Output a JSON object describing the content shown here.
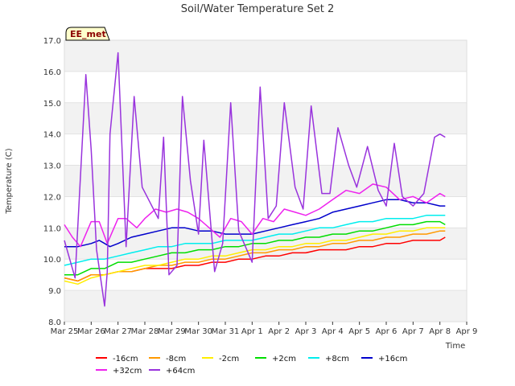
{
  "chart_data": {
    "type": "line",
    "title": "Soil/Water Temperature Set 2",
    "xlabel": "Time",
    "ylabel": "Temperature (C)",
    "annotation": "EE_met",
    "x_ticks": [
      "Mar 25",
      "Mar 26",
      "Mar 27",
      "Mar 28",
      "Mar 29",
      "Mar 30",
      "Mar 31",
      "Apr 1",
      "Apr 2",
      "Apr 3",
      "Apr 4",
      "Apr 5",
      "Apr 6",
      "Apr 7",
      "Apr 8",
      "Apr 9"
    ],
    "xlim": [
      0,
      15
    ],
    "y_ticks": [
      "8.0",
      "9.0",
      "10.0",
      "11.0",
      "12.0",
      "13.0",
      "14.0",
      "15.0",
      "16.0",
      "17.0"
    ],
    "ylim": [
      8.0,
      17.0
    ],
    "grid": "horizontal bands",
    "legend_position": "bottom",
    "x_units": "days since Mar 25",
    "series": [
      {
        "name": "-16cm",
        "color": "#ff0000",
        "x": [
          0,
          0.5,
          1,
          1.5,
          2,
          2.5,
          3,
          3.5,
          4,
          4.5,
          5,
          5.5,
          6,
          6.5,
          7,
          7.5,
          8,
          8.5,
          9,
          9.5,
          10,
          10.5,
          11,
          11.5,
          12,
          12.5,
          13,
          13.5,
          14,
          14.2
        ],
        "values": [
          9.4,
          9.3,
          9.5,
          9.5,
          9.6,
          9.6,
          9.7,
          9.7,
          9.7,
          9.8,
          9.8,
          9.9,
          9.9,
          10.0,
          10.0,
          10.1,
          10.1,
          10.2,
          10.2,
          10.3,
          10.3,
          10.3,
          10.4,
          10.4,
          10.5,
          10.5,
          10.6,
          10.6,
          10.6,
          10.7
        ]
      },
      {
        "name": "-8cm",
        "color": "#ff9900",
        "x": [
          0,
          0.5,
          1,
          1.5,
          2,
          2.5,
          3,
          3.5,
          4,
          4.5,
          5,
          5.5,
          6,
          6.5,
          7,
          7.5,
          8,
          8.5,
          9,
          9.5,
          10,
          10.5,
          11,
          11.5,
          12,
          12.5,
          13,
          13.5,
          14,
          14.2
        ],
        "values": [
          9.4,
          9.3,
          9.5,
          9.5,
          9.6,
          9.6,
          9.7,
          9.8,
          9.8,
          9.9,
          9.9,
          10.0,
          10.0,
          10.1,
          10.2,
          10.2,
          10.3,
          10.3,
          10.4,
          10.4,
          10.5,
          10.5,
          10.6,
          10.6,
          10.7,
          10.7,
          10.8,
          10.8,
          10.9,
          10.9
        ]
      },
      {
        "name": "-2cm",
        "color": "#ffee00",
        "x": [
          0,
          0.5,
          1,
          1.5,
          2,
          2.5,
          3,
          3.5,
          4,
          4.5,
          5,
          5.5,
          6,
          6.5,
          7,
          7.5,
          8,
          8.5,
          9,
          9.5,
          10,
          10.5,
          11,
          11.5,
          12,
          12.5,
          13,
          13.5,
          14,
          14.2
        ],
        "values": [
          9.3,
          9.2,
          9.4,
          9.5,
          9.6,
          9.7,
          9.8,
          9.8,
          9.9,
          10.0,
          10.0,
          10.1,
          10.1,
          10.2,
          10.3,
          10.3,
          10.4,
          10.4,
          10.5,
          10.5,
          10.6,
          10.6,
          10.7,
          10.8,
          10.8,
          10.9,
          10.9,
          11.0,
          11.0,
          11.0
        ]
      },
      {
        "name": "+2cm",
        "color": "#00dd00",
        "x": [
          0,
          0.5,
          1,
          1.5,
          2,
          2.5,
          3,
          3.5,
          4,
          4.5,
          5,
          5.5,
          6,
          6.5,
          7,
          7.5,
          8,
          8.5,
          9,
          9.5,
          10,
          10.5,
          11,
          11.5,
          12,
          12.5,
          13,
          13.5,
          14,
          14.2
        ],
        "values": [
          9.5,
          9.5,
          9.7,
          9.7,
          9.9,
          9.9,
          10.0,
          10.1,
          10.2,
          10.2,
          10.3,
          10.3,
          10.4,
          10.4,
          10.5,
          10.5,
          10.6,
          10.6,
          10.7,
          10.7,
          10.8,
          10.8,
          10.9,
          10.9,
          11.0,
          11.1,
          11.1,
          11.2,
          11.2,
          11.1
        ]
      },
      {
        "name": "+8cm",
        "color": "#00eeee",
        "x": [
          0,
          0.5,
          1,
          1.5,
          2,
          2.5,
          3,
          3.5,
          4,
          4.5,
          5,
          5.5,
          6,
          6.5,
          7,
          7.5,
          8,
          8.5,
          9,
          9.5,
          10,
          10.5,
          11,
          11.5,
          12,
          12.5,
          13,
          13.5,
          14,
          14.2
        ],
        "values": [
          9.8,
          9.9,
          10.0,
          10.0,
          10.1,
          10.2,
          10.3,
          10.4,
          10.4,
          10.5,
          10.5,
          10.5,
          10.6,
          10.6,
          10.6,
          10.7,
          10.8,
          10.8,
          10.9,
          11.0,
          11.0,
          11.1,
          11.2,
          11.2,
          11.3,
          11.3,
          11.3,
          11.4,
          11.4,
          11.4
        ]
      },
      {
        "name": "+16cm",
        "color": "#0000cc",
        "x": [
          0,
          0.5,
          1,
          1.3,
          1.7,
          2,
          2.5,
          3,
          3.5,
          4,
          4.5,
          5,
          5.5,
          6,
          6.5,
          7,
          7.5,
          8,
          8.5,
          9,
          9.5,
          10,
          10.5,
          11,
          11.5,
          12,
          12.5,
          13,
          13.5,
          14,
          14.2
        ],
        "values": [
          10.4,
          10.4,
          10.5,
          10.6,
          10.4,
          10.5,
          10.7,
          10.8,
          10.9,
          11.0,
          11.0,
          10.9,
          10.9,
          10.8,
          10.8,
          10.8,
          10.9,
          11.0,
          11.1,
          11.2,
          11.3,
          11.5,
          11.6,
          11.7,
          11.8,
          11.9,
          11.9,
          11.8,
          11.8,
          11.7,
          11.7
        ]
      },
      {
        "name": "+32cm",
        "color": "#ee22ee",
        "x": [
          0,
          0.3,
          0.6,
          1,
          1.3,
          1.6,
          2,
          2.3,
          2.7,
          3,
          3.4,
          3.8,
          4.2,
          4.6,
          5,
          5.4,
          5.8,
          6.2,
          6.6,
          7,
          7.4,
          7.8,
          8.2,
          8.6,
          9,
          9.5,
          10,
          10.5,
          11,
          11.5,
          12,
          12.5,
          13,
          13.5,
          14,
          14.2
        ],
        "values": [
          11.1,
          10.7,
          10.4,
          11.2,
          11.2,
          10.5,
          11.3,
          11.3,
          11.0,
          11.3,
          11.6,
          11.5,
          11.6,
          11.5,
          11.3,
          11.0,
          10.7,
          11.3,
          11.2,
          10.8,
          11.3,
          11.2,
          11.6,
          11.5,
          11.4,
          11.6,
          11.9,
          12.2,
          12.1,
          12.4,
          12.3,
          11.9,
          12.0,
          11.8,
          12.1,
          12.0
        ]
      },
      {
        "name": "+64cm",
        "color": "#9933dd",
        "x": [
          0,
          0.4,
          0.8,
          1.0,
          1.2,
          1.5,
          1.6,
          1.7,
          2.0,
          2.3,
          2.6,
          2.9,
          3.2,
          3.5,
          3.7,
          3.9,
          4.2,
          4.4,
          4.7,
          5.0,
          5.2,
          5.6,
          5.9,
          6.2,
          6.5,
          6.8,
          7.0,
          7.3,
          7.6,
          7.9,
          8.2,
          8.6,
          8.9,
          9.2,
          9.6,
          9.9,
          10.2,
          10.6,
          10.9,
          11.3,
          11.7,
          12.0,
          12.3,
          12.6,
          13.0,
          13.4,
          13.8,
          14.0,
          14.2
        ],
        "values": [
          10.6,
          9.4,
          15.9,
          13.5,
          10.3,
          8.5,
          9.6,
          14.0,
          16.6,
          10.4,
          15.2,
          12.3,
          11.8,
          11.3,
          13.9,
          9.5,
          9.8,
          15.2,
          12.5,
          10.8,
          13.8,
          9.6,
          10.5,
          15.0,
          10.9,
          10.3,
          9.9,
          15.5,
          11.3,
          11.7,
          15.0,
          12.3,
          11.6,
          14.9,
          12.1,
          12.1,
          14.2,
          13.0,
          12.3,
          13.6,
          12.2,
          11.7,
          13.7,
          12.0,
          11.7,
          12.1,
          13.9,
          14.0,
          13.9
        ]
      }
    ]
  }
}
